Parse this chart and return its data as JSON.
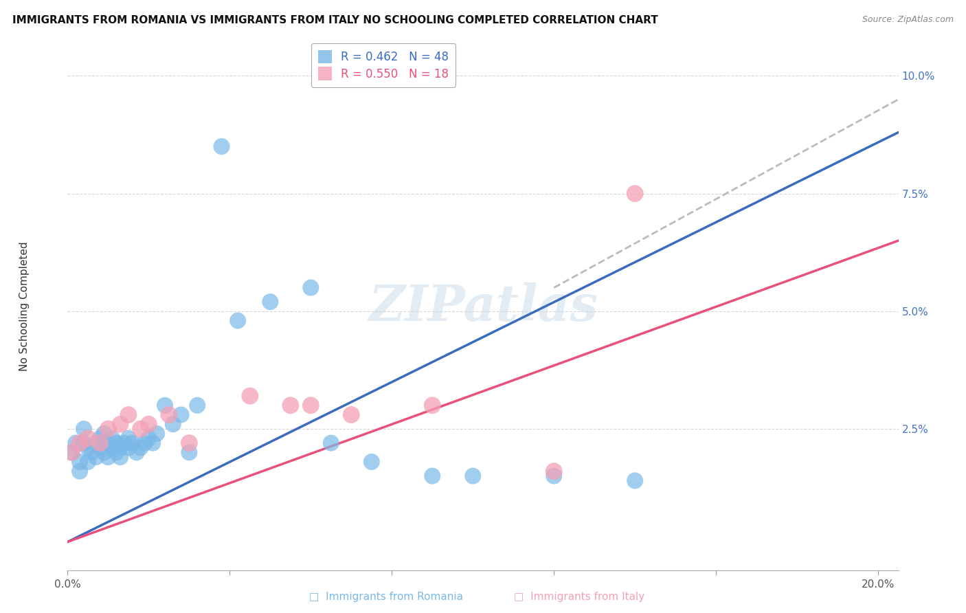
{
  "title": "IMMIGRANTS FROM ROMANIA VS IMMIGRANTS FROM ITALY NO SCHOOLING COMPLETED CORRELATION CHART",
  "source": "Source: ZipAtlas.com",
  "ylabel": "No Schooling Completed",
  "ytick_vals": [
    0.025,
    0.05,
    0.075,
    0.1
  ],
  "xlim": [
    0.0,
    0.205
  ],
  "ylim": [
    -0.005,
    0.107
  ],
  "legend_romania": "R = 0.462   N = 48",
  "legend_italy": "R = 0.550   N = 18",
  "romania_color": "#7ab8e8",
  "italy_color": "#f4a0b5",
  "romania_line_color": "#3a6bbf",
  "italy_line_color": "#e8527a",
  "dashed_line_color": "#bbbbbb",
  "watermark": "ZIPatlas",
  "background_color": "#ffffff",
  "grid_color": "#cccccc",
  "romania_x": [
    0.001,
    0.002,
    0.003,
    0.003,
    0.004,
    0.004,
    0.005,
    0.005,
    0.006,
    0.007,
    0.007,
    0.008,
    0.008,
    0.009,
    0.009,
    0.01,
    0.01,
    0.011,
    0.011,
    0.012,
    0.012,
    0.013,
    0.013,
    0.014,
    0.015,
    0.015,
    0.016,
    0.017,
    0.018,
    0.019,
    0.02,
    0.021,
    0.022,
    0.024,
    0.026,
    0.028,
    0.03,
    0.032,
    0.038,
    0.042,
    0.05,
    0.06,
    0.065,
    0.075,
    0.09,
    0.1,
    0.12,
    0.14
  ],
  "romania_y": [
    0.02,
    0.022,
    0.018,
    0.016,
    0.022,
    0.025,
    0.018,
    0.021,
    0.02,
    0.022,
    0.019,
    0.023,
    0.021,
    0.02,
    0.024,
    0.019,
    0.022,
    0.021,
    0.023,
    0.02,
    0.022,
    0.021,
    0.019,
    0.022,
    0.023,
    0.021,
    0.022,
    0.02,
    0.021,
    0.022,
    0.023,
    0.022,
    0.024,
    0.03,
    0.026,
    0.028,
    0.02,
    0.03,
    0.085,
    0.048,
    0.052,
    0.055,
    0.022,
    0.018,
    0.015,
    0.015,
    0.015,
    0.014
  ],
  "italy_x": [
    0.001,
    0.003,
    0.005,
    0.008,
    0.01,
    0.013,
    0.015,
    0.018,
    0.02,
    0.025,
    0.03,
    0.045,
    0.055,
    0.06,
    0.07,
    0.09,
    0.14,
    0.12
  ],
  "italy_y": [
    0.02,
    0.022,
    0.023,
    0.022,
    0.025,
    0.026,
    0.028,
    0.025,
    0.026,
    0.028,
    0.022,
    0.032,
    0.03,
    0.03,
    0.028,
    0.03,
    0.075,
    0.016
  ]
}
